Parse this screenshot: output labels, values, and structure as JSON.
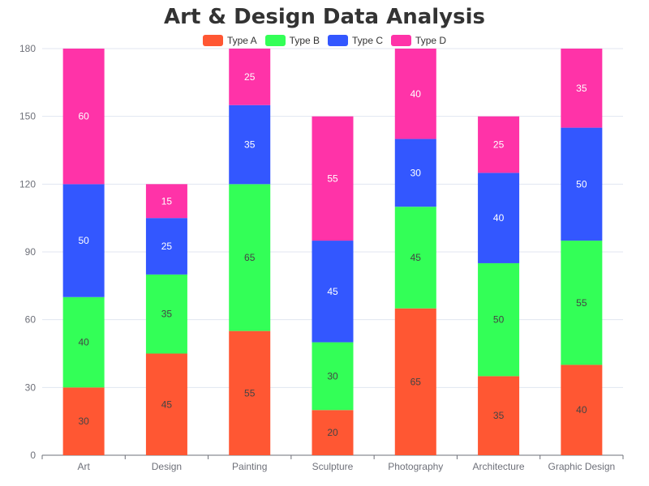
{
  "chart_data": {
    "type": "bar",
    "stacked": true,
    "title": "Art & Design Data Analysis",
    "categories": [
      "Art",
      "Design",
      "Painting",
      "Sculpture",
      "Photography",
      "Architecture",
      "Graphic Design"
    ],
    "series": [
      {
        "name": "Type A",
        "color": "#ff5733",
        "label_color": "#444444",
        "values": [
          30,
          45,
          55,
          20,
          65,
          35,
          40
        ]
      },
      {
        "name": "Type B",
        "color": "#33ff57",
        "label_color": "#444444",
        "values": [
          40,
          35,
          65,
          30,
          45,
          50,
          55
        ]
      },
      {
        "name": "Type C",
        "color": "#3357ff",
        "label_color": "#ffffff",
        "values": [
          50,
          25,
          35,
          45,
          30,
          40,
          50
        ]
      },
      {
        "name": "Type D",
        "color": "#ff33a8",
        "label_color": "#ffffff",
        "values": [
          60,
          15,
          25,
          55,
          40,
          25,
          35
        ]
      }
    ],
    "ylim": [
      0,
      180
    ],
    "yticks": [
      0,
      30,
      60,
      90,
      120,
      150,
      180
    ],
    "grid": true,
    "legend_position": "top-center"
  }
}
